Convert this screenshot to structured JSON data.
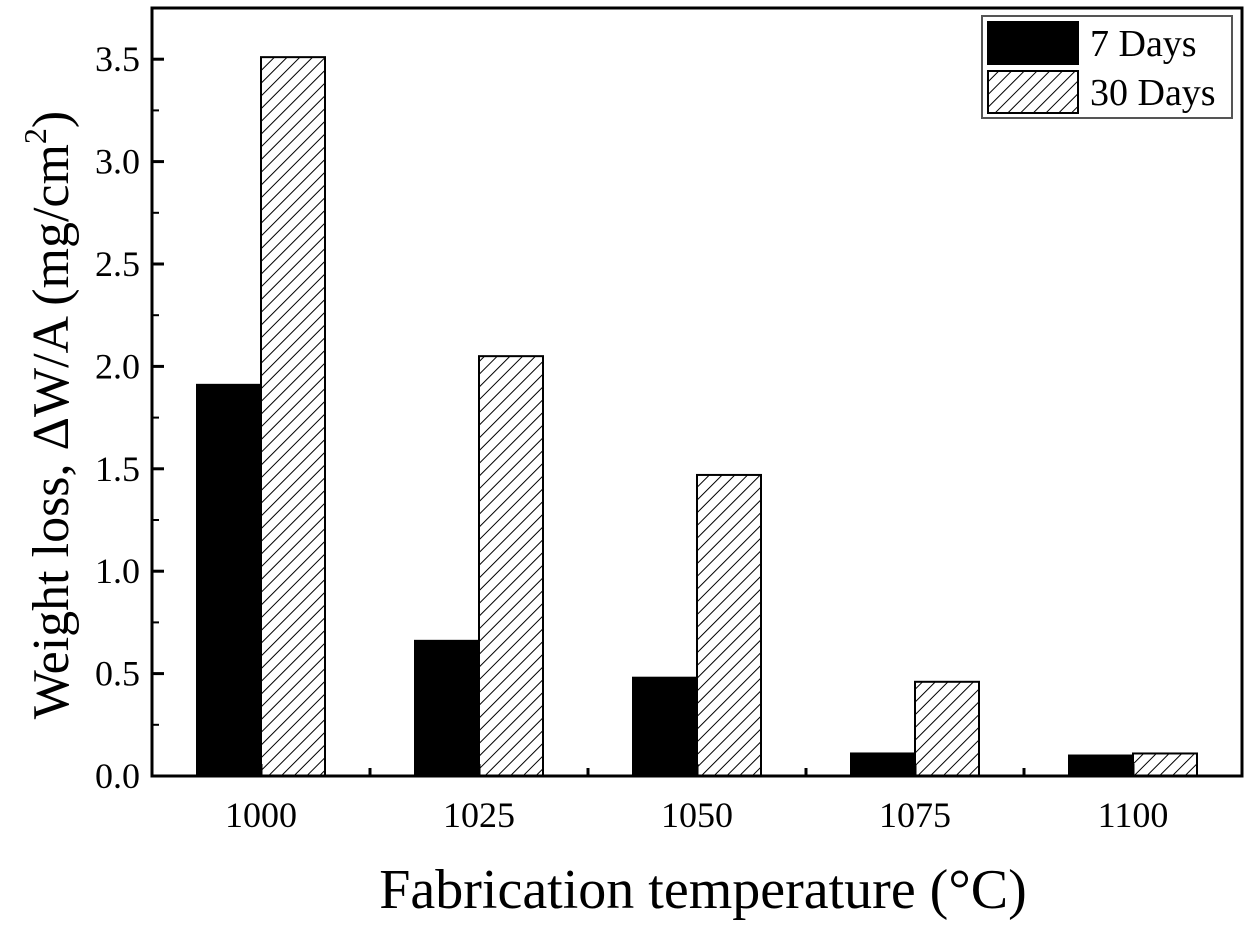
{
  "chart_data": {
    "type": "bar",
    "title": "",
    "categories": [
      "1000",
      "1025",
      "1050",
      "1075",
      "1100"
    ],
    "series": [
      {
        "name": "7 Days",
        "values": [
          1.91,
          0.66,
          0.48,
          0.11,
          0.1
        ],
        "fill": "#000000",
        "pattern": "solid"
      },
      {
        "name": "30 Days",
        "values": [
          3.51,
          2.05,
          1.47,
          0.46,
          0.11
        ],
        "fill": "#ffffff",
        "pattern": "diagonal-hatch"
      }
    ],
    "xlabel": "Fabrication temperature (°C)",
    "ylabel": {
      "main": "Weight loss, ΔW/A (mg/cm",
      "superscript": "2",
      "close": ")"
    },
    "yticks": [
      "0.0",
      "0.5",
      "1.0",
      "1.5",
      "2.0",
      "2.5",
      "3.0",
      "3.5"
    ],
    "ylim": [
      0,
      3.75
    ],
    "grid": false,
    "legend_position": "top-right"
  }
}
